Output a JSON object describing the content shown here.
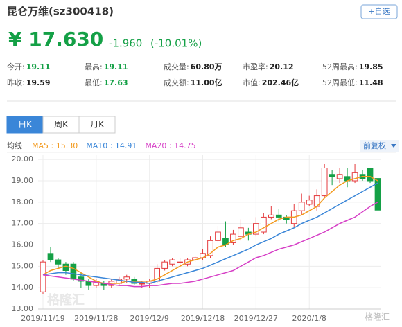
{
  "header": {
    "title": "昆仑万维(sz300418)",
    "button": "+自选",
    "price": "¥ 17.630",
    "change": "-1.960",
    "change_pct": "(-10.01%)"
  },
  "stats": [
    {
      "label": "今开:",
      "value": "19.11",
      "tone": "down"
    },
    {
      "label": "最高:",
      "value": "19.11",
      "tone": "down"
    },
    {
      "label": "成交量:",
      "value": "60.80万",
      "tone": "flat"
    },
    {
      "label": "市盈率:",
      "value": "20.12",
      "tone": "flat"
    },
    {
      "label": "52周最高:",
      "value": "19.85",
      "tone": "flat"
    },
    {
      "label": "昨收:",
      "value": "19.59",
      "tone": "flat"
    },
    {
      "label": "最低:",
      "value": "17.63",
      "tone": "down"
    },
    {
      "label": "成交额:",
      "value": "11.00亿",
      "tone": "flat"
    },
    {
      "label": "市值:",
      "value": "202.46亿",
      "tone": "flat"
    },
    {
      "label": "52周最低:",
      "value": "11.48",
      "tone": "flat"
    }
  ],
  "tabs": [
    "日K",
    "周K",
    "月K"
  ],
  "selected_tab": 0,
  "adjust": "前复权",
  "watermark": "格隆汇",
  "chart_data": {
    "type": "candlestick",
    "legend_title": "均线",
    "up_color": "#e4393c",
    "down_color": "#14a046",
    "grid": true,
    "categories": [
      "2019/11/19",
      null,
      null,
      null,
      null,
      null,
      null,
      "2019/11/28",
      null,
      null,
      null,
      null,
      null,
      null,
      "2019/12/9",
      null,
      null,
      null,
      null,
      null,
      null,
      "2019/12/18",
      null,
      null,
      null,
      null,
      null,
      null,
      "2019/12/27",
      null,
      null,
      null,
      null,
      null,
      null,
      "2020/1/8",
      null,
      null,
      null,
      null,
      null,
      null,
      null,
      null,
      null
    ],
    "open": [
      13.8,
      15.6,
      15.3,
      15.1,
      15.1,
      14.5,
      14.3,
      14.1,
      14.2,
      14.1,
      14.2,
      14.4,
      14.4,
      14.2,
      14.2,
      14.3,
      14.9,
      15.1,
      15.2,
      15.1,
      15.3,
      15.4,
      15.5,
      16.2,
      16.3,
      16.1,
      16.4,
      16.6,
      16.5,
      16.6,
      17.3,
      17.4,
      17.3,
      17.0,
      17.6,
      17.9,
      17.8,
      18.3,
      19.3,
      19.1,
      19.2,
      19.0,
      19.3,
      19.6,
      19.11
    ],
    "close": [
      15.2,
      15.3,
      15.1,
      14.8,
      14.4,
      14.3,
      14.1,
      14.3,
      14.1,
      14.3,
      14.4,
      14.5,
      14.2,
      14.2,
      14.3,
      14.9,
      15.2,
      15.3,
      15.2,
      15.3,
      15.4,
      15.6,
      16.2,
      16.6,
      16.0,
      16.5,
      16.8,
      16.5,
      17.0,
      17.3,
      17.4,
      17.3,
      17.2,
      17.6,
      18.0,
      18.1,
      18.3,
      19.6,
      19.2,
      19.3,
      19.0,
      19.4,
      19.1,
      19.0,
      17.63
    ],
    "high": [
      15.3,
      15.9,
      15.4,
      15.2,
      15.2,
      14.7,
      14.4,
      14.4,
      14.3,
      14.4,
      14.5,
      14.6,
      14.5,
      14.3,
      14.4,
      15.1,
      15.3,
      15.4,
      15.4,
      15.4,
      15.5,
      15.8,
      16.4,
      16.9,
      17.1,
      16.7,
      17.2,
      16.8,
      17.3,
      17.5,
      17.8,
      17.7,
      17.4,
      17.9,
      18.4,
      18.3,
      18.6,
      19.8,
      19.5,
      19.6,
      19.6,
      19.8,
      19.5,
      19.6,
      19.11
    ],
    "low": [
      13.7,
      15.2,
      14.9,
      14.6,
      14.3,
      14.0,
      13.9,
      14.0,
      13.9,
      14.0,
      14.1,
      14.2,
      14.1,
      14.0,
      14.0,
      14.2,
      14.8,
      15.0,
      15.0,
      15.0,
      15.2,
      15.3,
      15.4,
      16.1,
      15.9,
      16.0,
      16.2,
      16.2,
      16.4,
      16.5,
      17.2,
      17.1,
      17.0,
      16.8,
      17.4,
      17.8,
      17.6,
      18.2,
      18.8,
      18.9,
      18.7,
      18.9,
      19.0,
      18.9,
      17.63
    ],
    "series": [
      {
        "name": "MA5 : 15.30",
        "color": "#f39a1e",
        "values": [
          14.6,
          14.8,
          14.9,
          15.0,
          14.9,
          14.7,
          14.5,
          14.3,
          14.2,
          14.2,
          14.2,
          14.3,
          14.3,
          14.3,
          14.3,
          14.4,
          14.6,
          14.8,
          15.0,
          15.2,
          15.3,
          15.4,
          15.6,
          15.9,
          16.0,
          16.2,
          16.3,
          16.5,
          16.6,
          16.8,
          17.0,
          17.2,
          17.3,
          17.3,
          17.4,
          17.6,
          17.8,
          18.2,
          18.5,
          18.8,
          19.0,
          19.1,
          19.2,
          19.2,
          19.0
        ]
      },
      {
        "name": "MA10 : 14.91",
        "color": "#3a86d8",
        "values": [
          14.6,
          14.65,
          14.7,
          14.7,
          14.65,
          14.6,
          14.55,
          14.5,
          14.45,
          14.4,
          14.35,
          14.3,
          14.25,
          14.25,
          14.2,
          14.3,
          14.4,
          14.5,
          14.6,
          14.7,
          14.8,
          14.9,
          15.05,
          15.2,
          15.35,
          15.5,
          15.65,
          15.8,
          16.0,
          16.15,
          16.3,
          16.5,
          16.65,
          16.8,
          17.0,
          17.15,
          17.3,
          17.5,
          17.7,
          17.9,
          18.1,
          18.3,
          18.5,
          18.7,
          18.9
        ]
      },
      {
        "name": "MA20 : 14.75",
        "color": "#d63fc6",
        "values": [
          14.6,
          14.55,
          14.5,
          14.45,
          14.4,
          14.35,
          14.3,
          14.25,
          14.2,
          14.15,
          14.1,
          14.1,
          14.05,
          14.05,
          14.1,
          14.1,
          14.15,
          14.2,
          14.2,
          14.25,
          14.3,
          14.4,
          14.5,
          14.6,
          14.7,
          14.8,
          15.0,
          15.2,
          15.4,
          15.5,
          15.65,
          15.8,
          15.9,
          16.0,
          16.15,
          16.3,
          16.45,
          16.6,
          16.8,
          17.0,
          17.15,
          17.3,
          17.55,
          17.8,
          18.0
        ]
      }
    ],
    "ylim": [
      13,
      20.2
    ],
    "yticks": [
      {
        "value": 13,
        "label": "13.00"
      },
      {
        "value": 14,
        "label": "14.00"
      },
      {
        "value": 15,
        "label": "15.00"
      },
      {
        "value": 16,
        "label": "16.00"
      },
      {
        "value": 17,
        "label": "17.00"
      },
      {
        "value": 18,
        "label": "18.00"
      },
      {
        "value": 19,
        "label": "19.00"
      },
      {
        "value": 20,
        "label": "20.00"
      }
    ]
  }
}
